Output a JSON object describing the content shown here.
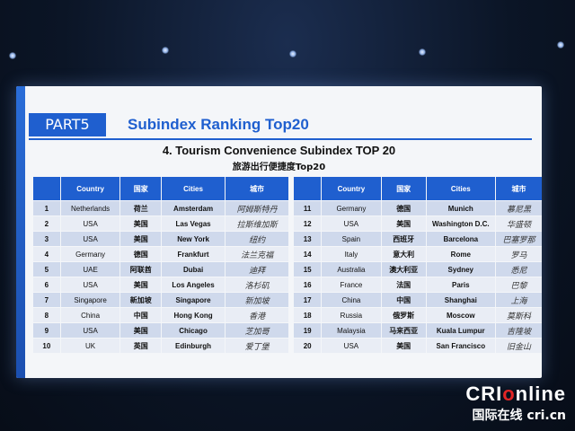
{
  "header": {
    "part_label": "PART5",
    "section_title": "Subindex Ranking  Top20"
  },
  "table": {
    "title": "4. Tourism  Convenience Subindex TOP 20",
    "subtitle": "旅游出行便捷度Top20",
    "columns": [
      "Country",
      "国家",
      "Cities",
      "城市"
    ],
    "rows_left": [
      {
        "rank": "1",
        "country": "Netherlands",
        "country_zh": "荷兰",
        "city": "Amsterdam",
        "city_zh": "阿姆斯特丹"
      },
      {
        "rank": "2",
        "country": "USA",
        "country_zh": "美国",
        "city": "Las Vegas",
        "city_zh": "拉斯维加斯"
      },
      {
        "rank": "3",
        "country": "USA",
        "country_zh": "美国",
        "city": "New York",
        "city_zh": "纽约"
      },
      {
        "rank": "4",
        "country": "Germany",
        "country_zh": "德国",
        "city": "Frankfurt",
        "city_zh": "法兰克福"
      },
      {
        "rank": "5",
        "country": "UAE",
        "country_zh": "阿联酋",
        "city": "Dubai",
        "city_zh": "迪拜"
      },
      {
        "rank": "6",
        "country": "USA",
        "country_zh": "美国",
        "city": "Los Angeles",
        "city_zh": "洛杉矶"
      },
      {
        "rank": "7",
        "country": "Singapore",
        "country_zh": "新加坡",
        "city": "Singapore",
        "city_zh": "新加坡"
      },
      {
        "rank": "8",
        "country": "China",
        "country_zh": "中国",
        "city": "Hong Kong",
        "city_zh": "香港"
      },
      {
        "rank": "9",
        "country": "USA",
        "country_zh": "美国",
        "city": "Chicago",
        "city_zh": "芝加哥"
      },
      {
        "rank": "10",
        "country": "UK",
        "country_zh": "英国",
        "city": "Edinburgh",
        "city_zh": "爱丁堡"
      }
    ],
    "rows_right": [
      {
        "rank": "11",
        "country": "Germany",
        "country_zh": "德国",
        "city": "Munich",
        "city_zh": "慕尼黑"
      },
      {
        "rank": "12",
        "country": "USA",
        "country_zh": "美国",
        "city": "Washington D.C.",
        "city_zh": "华盛顿"
      },
      {
        "rank": "13",
        "country": "Spain",
        "country_zh": "西班牙",
        "city": "Barcelona",
        "city_zh": "巴塞罗那"
      },
      {
        "rank": "14",
        "country": "Italy",
        "country_zh": "意大利",
        "city": "Rome",
        "city_zh": "罗马"
      },
      {
        "rank": "15",
        "country": "Australia",
        "country_zh": "澳大利亚",
        "city": "Sydney",
        "city_zh": "悉尼"
      },
      {
        "rank": "16",
        "country": "France",
        "country_zh": "法国",
        "city": "Paris",
        "city_zh": "巴黎"
      },
      {
        "rank": "17",
        "country": "China",
        "country_zh": "中国",
        "city": "Shanghai",
        "city_zh": "上海"
      },
      {
        "rank": "18",
        "country": "Russia",
        "country_zh": "俄罗斯",
        "city": "Moscow",
        "city_zh": "莫斯科"
      },
      {
        "rank": "19",
        "country": "Malaysia",
        "country_zh": "马来西亚",
        "city": "Kuala Lumpur",
        "city_zh": "吉隆坡"
      },
      {
        "rank": "20",
        "country": "USA",
        "country_zh": "美国",
        "city": "San Francisco",
        "city_zh": "旧金山"
      }
    ]
  },
  "watermark": {
    "logo_prefix": "CRI",
    "logo_accent": "o",
    "logo_suffix": "nline",
    "subtitle": "国际在线 cri.cn"
  },
  "colors": {
    "accent": "#1f5fcf",
    "row_odd": "#cfd9ec",
    "row_even": "#e9edf5",
    "logo_red": "#e32626"
  }
}
